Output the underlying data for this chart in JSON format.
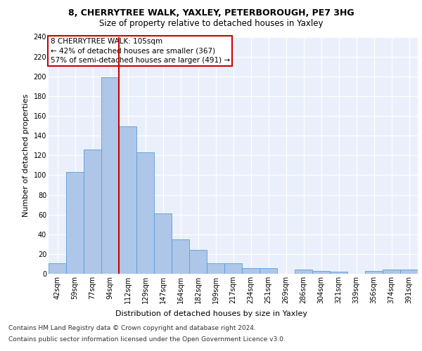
{
  "title1": "8, CHERRYTREE WALK, YAXLEY, PETERBOROUGH, PE7 3HG",
  "title2": "Size of property relative to detached houses in Yaxley",
  "xlabel": "Distribution of detached houses by size in Yaxley",
  "ylabel": "Number of detached properties",
  "bin_labels": [
    "42sqm",
    "59sqm",
    "77sqm",
    "94sqm",
    "112sqm",
    "129sqm",
    "147sqm",
    "164sqm",
    "182sqm",
    "199sqm",
    "217sqm",
    "234sqm",
    "251sqm",
    "269sqm",
    "286sqm",
    "304sqm",
    "321sqm",
    "339sqm",
    "356sqm",
    "374sqm",
    "391sqm"
  ],
  "bar_values": [
    11,
    103,
    126,
    199,
    149,
    123,
    61,
    35,
    24,
    11,
    11,
    6,
    6,
    0,
    4,
    3,
    2,
    0,
    3,
    4,
    4
  ],
  "bar_color": "#aec6e8",
  "bar_edge_color": "#5b9bd5",
  "vline_bin_index": 3,
  "annotation_text1": "8 CHERRYTREE WALK: 105sqm",
  "annotation_text2": "← 42% of detached houses are smaller (367)",
  "annotation_text3": "57% of semi-detached houses are larger (491) →",
  "annotation_box_color": "#ffffff",
  "annotation_box_edge": "#cc0000",
  "vline_color": "#cc0000",
  "ylim": [
    0,
    240
  ],
  "yticks": [
    0,
    20,
    40,
    60,
    80,
    100,
    120,
    140,
    160,
    180,
    200,
    220,
    240
  ],
  "footer1": "Contains HM Land Registry data © Crown copyright and database right 2024.",
  "footer2": "Contains public sector information licensed under the Open Government Licence v3.0.",
  "bg_color": "#eaf0fb",
  "grid_color": "#ffffff",
  "title1_fontsize": 9,
  "title2_fontsize": 8.5,
  "xlabel_fontsize": 8,
  "ylabel_fontsize": 8,
  "tick_fontsize": 7,
  "annotation_fontsize": 7.5,
  "footer_fontsize": 6.5
}
